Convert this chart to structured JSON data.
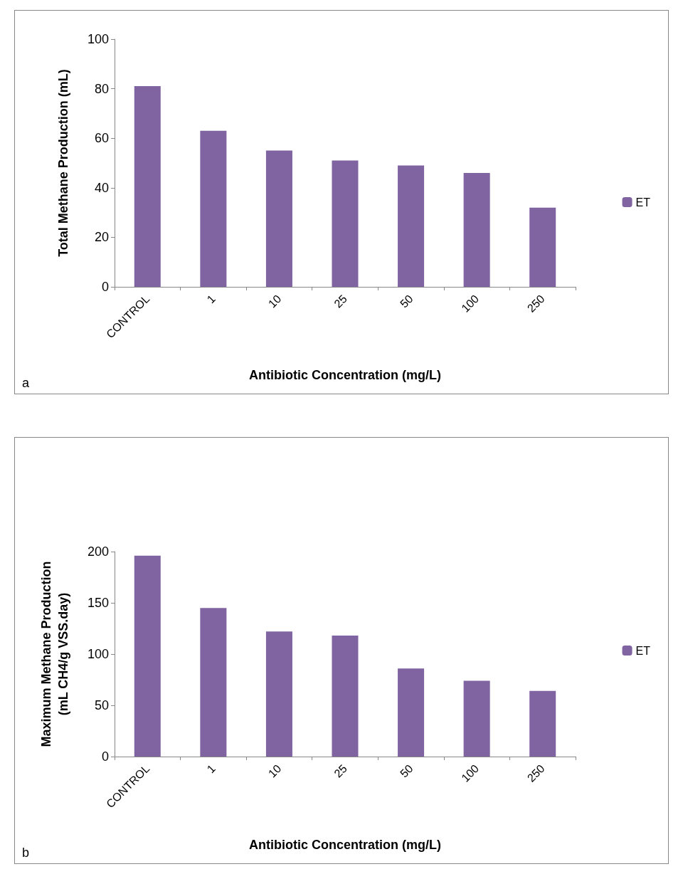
{
  "chart_data": [
    {
      "type": "bar",
      "ylabel": "Total Methane Production (mL)",
      "xlabel": "Antibiotic Concentration (mg/L)",
      "categories": [
        "CONTROL",
        "1",
        "10",
        "25",
        "50",
        "100",
        "250"
      ],
      "series": [
        {
          "name": "ET",
          "color": "#8064a2",
          "values": [
            81,
            63,
            55,
            51,
            49,
            46,
            32
          ]
        }
      ],
      "ylim": [
        0,
        100
      ],
      "yticks": [
        0,
        20,
        40,
        60,
        80,
        100
      ],
      "grid": false,
      "legend": "right",
      "annotations": [
        "a"
      ]
    },
    {
      "type": "bar",
      "ylabel": "Maximum Methane Production\n(mL CH4/g VSS.day)",
      "xlabel": "Antibiotic Concentration (mg/L)",
      "categories": [
        "CONTROL",
        "1",
        "10",
        "25",
        "50",
        "100",
        "250"
      ],
      "series": [
        {
          "name": "ET",
          "color": "#8064a2",
          "values": [
            196,
            145,
            122,
            118,
            86,
            74,
            64
          ]
        }
      ],
      "ylim": [
        0,
        200
      ],
      "yticks": [
        0,
        50,
        100,
        150,
        200
      ],
      "grid": false,
      "legend": "right",
      "annotations": [
        "b"
      ]
    }
  ]
}
